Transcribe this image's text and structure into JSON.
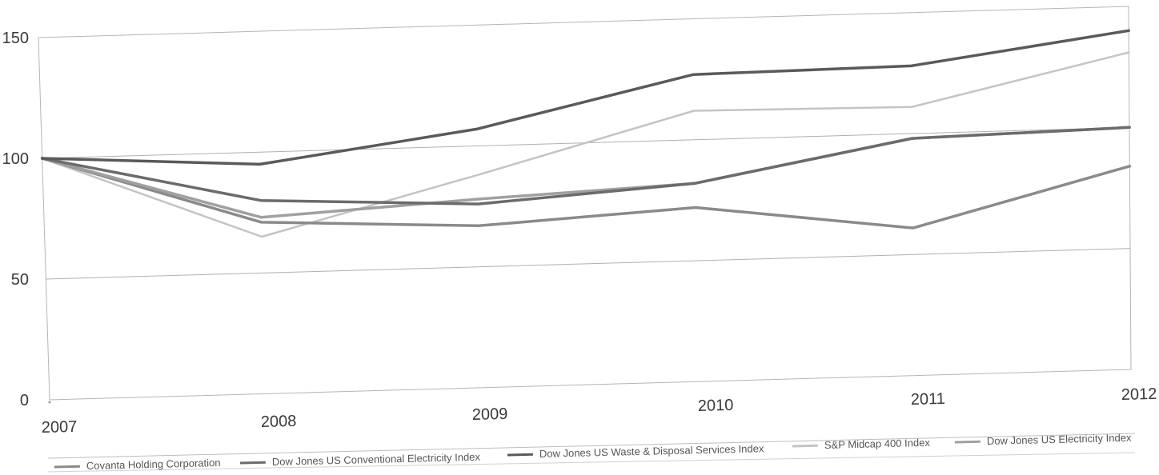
{
  "chart_data": {
    "type": "line",
    "x": [
      "2007",
      "2008",
      "2009",
      "2010",
      "2011",
      "2012"
    ],
    "ylim": [
      0,
      150
    ],
    "y_ticks": [
      "0",
      "50",
      "100",
      "150"
    ],
    "grid": true,
    "legend_position": "bottom",
    "series": [
      {
        "name": "Covanta Holding Corporation",
        "values": [
          100,
          71,
          67,
          72,
          61,
          84
        ],
        "color": "#8a8a8a"
      },
      {
        "name": "Dow Jones US Conventional Electricity Index",
        "values": [
          100,
          80,
          76,
          82,
          98,
          100
        ],
        "color": "#6b6b6b"
      },
      {
        "name": "Dow Jones US Waste & Disposal Services Index",
        "values": [
          100,
          95,
          107,
          127,
          128,
          140
        ],
        "color": "#5a5a5a"
      },
      {
        "name": "S&P Midcap 400 Index",
        "values": [
          100,
          65,
          88,
          112,
          111,
          131
        ],
        "color": "#c4c4c4"
      },
      {
        "name": "Dow Jones US Electricity Index",
        "values": [
          100,
          73,
          78,
          82,
          98,
          100
        ],
        "color": "#a0a0a0"
      }
    ]
  }
}
